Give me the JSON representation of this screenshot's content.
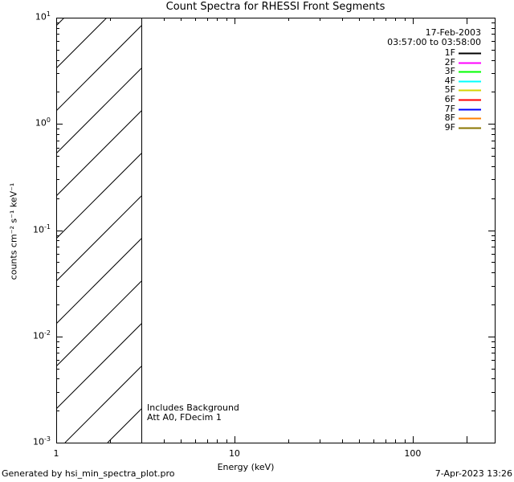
{
  "chart_data": {
    "type": "line",
    "title": "Count Spectra for RHESSI Front Segments",
    "xlabel": "Energy (keV)",
    "ylabel": "counts cm⁻² s⁻¹ keV⁻¹",
    "x_axis": {
      "scale": "log",
      "unit": "keV",
      "min": 1,
      "max": 290,
      "major_ticks": [
        {
          "value": 1,
          "label": "1"
        },
        {
          "value": 10,
          "label": "10"
        },
        {
          "value": 100,
          "label": "100"
        }
      ]
    },
    "y_axis": {
      "scale": "log",
      "min": 0.001,
      "max": 10,
      "tick_mantissa": "10",
      "major_tick_exponents": [
        1,
        0,
        -1,
        -2,
        -3
      ]
    },
    "series": [
      {
        "label": "1F",
        "color": "#000000"
      },
      {
        "label": "2F",
        "color": "#FF00FF"
      },
      {
        "label": "3F",
        "color": "#00FF00"
      },
      {
        "label": "4F",
        "color": "#00FFFF"
      },
      {
        "label": "5F",
        "color": "#D4D400"
      },
      {
        "label": "6F",
        "color": "#FF0000"
      },
      {
        "label": "7F",
        "color": "#0000FF"
      },
      {
        "label": "8F",
        "color": "#FF8000"
      },
      {
        "label": "9F",
        "color": "#8A7500"
      }
    ],
    "legend": {
      "date": "17-Feb-2003",
      "time_range": "03:57:00 to 03:58:00"
    },
    "annotations": {
      "line1": "Includes Background",
      "line2": "Att A0, FDecim 1"
    },
    "hatched_region": {
      "from_kev": 1,
      "to_kev": 3,
      "style": "diagonal-hatch-45deg"
    },
    "grid": "off",
    "legend_position": "top-right-inside"
  },
  "footer": {
    "left": "Generated by hsi_min_spectra_plot.pro",
    "right": "7-Apr-2023 13:26"
  }
}
